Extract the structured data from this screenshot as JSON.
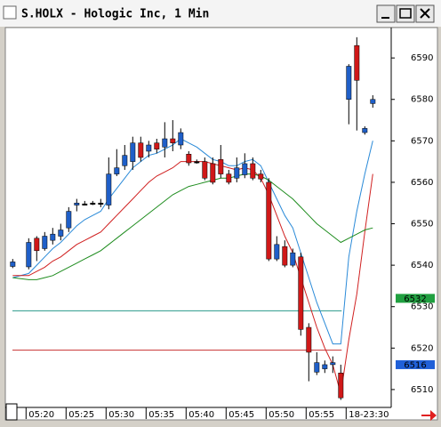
{
  "window": {
    "title": "S.HOLX - Hologic Inc, 1 Min"
  },
  "chart_data": {
    "type": "candlestick",
    "x": [
      0,
      2,
      3,
      4,
      5,
      6,
      7,
      8,
      9,
      10,
      11,
      12,
      13,
      14,
      15,
      16,
      17,
      18,
      19,
      20,
      21,
      22,
      23,
      24,
      25,
      26,
      27,
      28,
      29,
      30,
      31,
      32,
      33,
      34,
      35,
      36,
      37,
      38,
      39,
      40,
      41,
      42,
      43,
      44,
      45
    ],
    "open": [
      6539.7,
      6539.6,
      6546.5,
      6544,
      6546,
      6547,
      6549,
      6554.5,
      6554.8,
      6555,
      6555,
      6554.5,
      6562,
      6564,
      6565,
      6569.5,
      6567.5,
      6569.5,
      6568.5,
      6570.5,
      6569,
      6566.8,
      6565,
      6565,
      6564.5,
      6565.5,
      6562,
      6561,
      6561.8,
      6564.5,
      6562,
      6560,
      6541.5,
      6544.5,
      6540,
      6542,
      6525,
      6514.2,
      6515,
      6516,
      6514,
      6580,
      6593,
      6572,
      6579
    ],
    "high": [
      6541.5,
      6546.5,
      6547,
      6548,
      6549,
      6550,
      6554,
      6556,
      6555.5,
      6555.5,
      6556,
      6566,
      6568,
      6569,
      6571,
      6571,
      6570,
      6570.5,
      6574.5,
      6575,
      6573,
      6567.5,
      6565.5,
      6566,
      6566,
      6569,
      6563,
      6566,
      6567,
      6566,
      6563,
      6561,
      6547,
      6546,
      6544,
      6543,
      6526,
      6519,
      6517,
      6518,
      6516,
      6588.5,
      6595,
      6573.5,
      6581
    ],
    "low": [
      6539.3,
      6539,
      6541,
      6543.5,
      6545,
      6546,
      6548,
      6553,
      6554.5,
      6554.5,
      6554,
      6553.5,
      6561.5,
      6563,
      6563,
      6565,
      6566,
      6567,
      6566,
      6567.5,
      6568,
      6564,
      6564.5,
      6560.5,
      6559.5,
      6561,
      6559.5,
      6560,
      6561,
      6560.5,
      6560,
      6541,
      6541,
      6539.5,
      6539.5,
      6523,
      6512,
      6513.5,
      6514,
      6514,
      6507.5,
      6574,
      6572.5,
      6571.5,
      6578
    ],
    "close": [
      6540.8,
      6545.5,
      6543.5,
      6547,
      6547.5,
      6548.5,
      6553,
      6555,
      6554.8,
      6555,
      6555,
      6562,
      6563.5,
      6566.5,
      6569.5,
      6566,
      6569,
      6568,
      6570.5,
      6569.5,
      6572,
      6564.7,
      6565,
      6561,
      6560,
      6562,
      6560,
      6563.5,
      6564.5,
      6561,
      6560.8,
      6541.5,
      6545,
      6540,
      6543,
      6524.5,
      6519,
      6516.5,
      6516,
      6516.5,
      6508,
      6588,
      6584.6,
      6573,
      6580
    ],
    "up_color": "#1f5fc8",
    "down_color": "#d01818",
    "doji_color": "#000000",
    "lines": [
      {
        "color": "#2a8ad8",
        "values": [
          6537,
          6538,
          6540,
          6542,
          6544,
          6545.5,
          6547.5,
          6549.5,
          6551,
          6552,
          6553,
          6556,
          6558.5,
          6561,
          6563.5,
          6565,
          6566.5,
          6567,
          6568,
          6569,
          6570.5,
          6569.5,
          6568.5,
          6567,
          6565.5,
          6565,
          6564,
          6564,
          6565,
          6565.5,
          6564,
          6560,
          6556,
          6552,
          6549,
          6543,
          6537,
          6531,
          6526,
          6521,
          6521,
          6542,
          6553,
          6562,
          6570
        ]
      },
      {
        "color": "#d02020",
        "values": [
          6537.5,
          6537.5,
          6538.5,
          6539.5,
          6541,
          6542,
          6543.5,
          6545,
          6546,
          6547,
          6548,
          6550,
          6552,
          6554,
          6556,
          6558,
          6560,
          6561.5,
          6562.5,
          6563.5,
          6565,
          6565,
          6565,
          6565,
          6564.5,
          6564,
          6563.5,
          6563,
          6563.5,
          6563,
          6561,
          6557,
          6552,
          6547,
          6543,
          6537,
          6531,
          6525,
          6520,
          6516,
          6509,
          6522,
          6533,
          6548,
          6562
        ]
      },
      {
        "color": "#1e8c1e",
        "values": [
          6537,
          6536.5,
          6536.5,
          6537,
          6537.5,
          6538.5,
          6539.5,
          6540.5,
          6541.5,
          6542.5,
          6543.5,
          6545,
          6546.5,
          6548,
          6549.5,
          6551,
          6552.5,
          6554,
          6555.5,
          6557,
          6558,
          6559,
          6559.5,
          6560,
          6560.5,
          6561,
          6561,
          6561.5,
          6562,
          6562,
          6561.5,
          6560.5,
          6559,
          6557.5,
          6556,
          6554,
          6552,
          6550,
          6548.5,
          6547,
          6545.5,
          6546.5,
          6547.5,
          6548.5,
          6549
        ]
      }
    ],
    "levels": [
      {
        "value": 6529,
        "color": "#2a9a8a"
      },
      {
        "value": 6519.5,
        "color": "#c83030"
      }
    ],
    "price_tags": [
      {
        "value": 6532,
        "color": "#20a040"
      },
      {
        "value": 6516,
        "color": "#2060d8"
      }
    ],
    "xlim": [
      -0.7,
      47.3
    ],
    "xticks": [
      {
        "value": 2,
        "label": "05:20"
      },
      {
        "value": 7,
        "label": "05:25"
      },
      {
        "value": 12,
        "label": "05:30"
      },
      {
        "value": 17,
        "label": "05:35"
      },
      {
        "value": 22,
        "label": "05:40"
      },
      {
        "value": 27,
        "label": "05:45"
      },
      {
        "value": 32,
        "label": "05:50"
      },
      {
        "value": 37,
        "label": "05:55"
      },
      {
        "value": 42,
        "label": "18-23:30"
      }
    ],
    "ylim": [
      6505.9,
      6596.9
    ],
    "yticks": [
      6510,
      6520,
      6530,
      6540,
      6550,
      6560,
      6570,
      6580,
      6590
    ]
  }
}
